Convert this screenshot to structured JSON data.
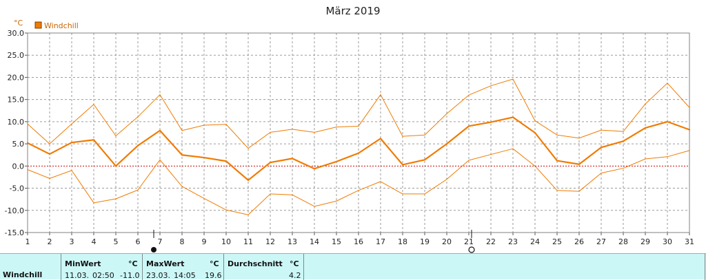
{
  "chart_data": {
    "type": "line",
    "title": "März 2019",
    "unit": "°C",
    "legend": "Windchill",
    "x": [
      1,
      2,
      3,
      4,
      5,
      6,
      7,
      8,
      9,
      10,
      11,
      12,
      13,
      14,
      15,
      16,
      17,
      18,
      19,
      20,
      21,
      22,
      23,
      24,
      25,
      26,
      27,
      28,
      29,
      30,
      31
    ],
    "ylim": [
      -15,
      30
    ],
    "yticks": [
      "30.0",
      "25.0",
      "20.0",
      "15.0",
      "10.0",
      "5.0",
      "0.0",
      "-5.0",
      "-10.0",
      "-15.0"
    ],
    "grid": true,
    "legend_position": "top-left",
    "series": [
      {
        "name": "Windchill",
        "role": "avg",
        "values": [
          5.2,
          2.7,
          5.3,
          5.9,
          0.0,
          4.6,
          8.0,
          2.5,
          1.9,
          1.1,
          -3.2,
          0.8,
          1.7,
          -0.6,
          1.0,
          2.9,
          6.2,
          0.3,
          1.4,
          5.0,
          9.0,
          9.9,
          11.0,
          7.5,
          1.2,
          0.4,
          4.2,
          5.6,
          8.6,
          10.0,
          8.2
        ]
      },
      {
        "role": "max",
        "values": [
          9.5,
          5.0,
          9.5,
          13.9,
          6.8,
          11.1,
          16.1,
          8.0,
          9.2,
          9.4,
          4.0,
          7.6,
          8.3,
          7.6,
          8.8,
          9.0,
          16.1,
          6.7,
          7.0,
          11.8,
          16.0,
          18.1,
          19.6,
          10.2,
          7.0,
          6.3,
          8.1,
          7.8,
          14.0,
          18.7,
          13.2
        ]
      },
      {
        "role": "min",
        "values": [
          -0.8,
          -2.8,
          -1.0,
          -8.3,
          -7.4,
          -5.4,
          1.4,
          -4.6,
          -7.3,
          -9.9,
          -11.0,
          -6.3,
          -6.5,
          -9.1,
          -7.9,
          -5.5,
          -3.5,
          -6.3,
          -6.3,
          -3.0,
          1.3,
          2.6,
          3.9,
          0.0,
          -5.5,
          -5.7,
          -1.6,
          -0.5,
          1.6,
          2.1,
          3.5
        ]
      }
    ],
    "colors": {
      "line": "#f07b00",
      "grid": "#9a9a9a",
      "zero": "#d00000",
      "frame": "#808080"
    }
  },
  "stats": {
    "label": "Windchill",
    "min": {
      "header": "MinWert",
      "unit": "°C",
      "date": "11.03.",
      "time": "02:50",
      "value": "-11.0"
    },
    "max": {
      "header": "MaxWert",
      "unit": "°C",
      "date": "23.03.",
      "time": "14:05",
      "value": "19.6"
    },
    "avg": {
      "header": "Durchschnitt",
      "unit": "°C",
      "value": "4.2"
    }
  }
}
